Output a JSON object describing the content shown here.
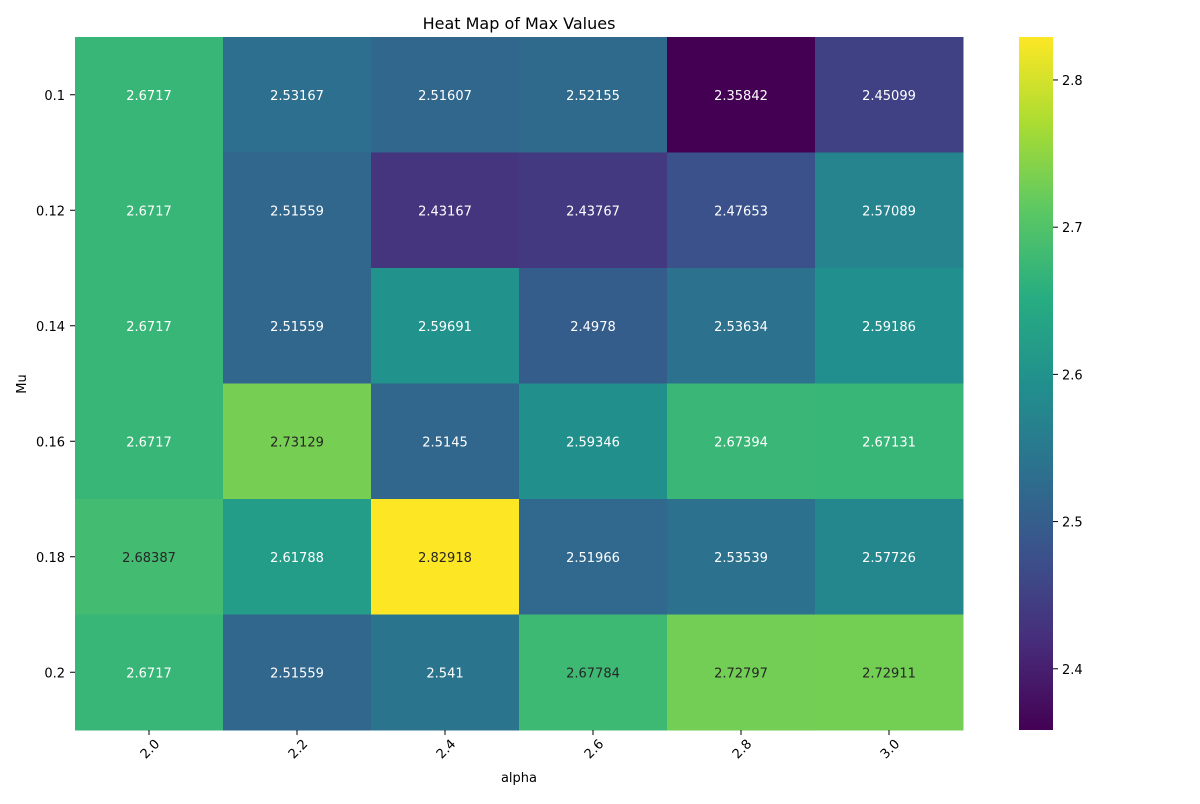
{
  "chart_data": {
    "type": "heatmap",
    "title": "Heat Map of Max Values",
    "xlabel": "alpha",
    "ylabel": "Mu",
    "x_categories": [
      "2.0",
      "2.2",
      "2.4",
      "2.6",
      "2.8",
      "3.0"
    ],
    "y_categories": [
      "0.1",
      "0.12",
      "0.14",
      "0.16",
      "0.18",
      "0.2"
    ],
    "values": [
      [
        2.6717,
        2.53167,
        2.51607,
        2.52155,
        2.35842,
        2.45099
      ],
      [
        2.6717,
        2.51559,
        2.43167,
        2.43767,
        2.47653,
        2.57089
      ],
      [
        2.6717,
        2.51559,
        2.59691,
        2.4978,
        2.53634,
        2.59186
      ],
      [
        2.6717,
        2.73129,
        2.5145,
        2.59346,
        2.67394,
        2.67131
      ],
      [
        2.68387,
        2.61788,
        2.82918,
        2.51966,
        2.53539,
        2.57726
      ],
      [
        2.6717,
        2.51559,
        2.541,
        2.67784,
        2.72797,
        2.72911
      ]
    ],
    "annotations": [
      [
        "2.6717",
        "2.53167",
        "2.51607",
        "2.52155",
        "2.35842",
        "2.45099"
      ],
      [
        "2.6717",
        "2.51559",
        "2.43167",
        "2.43767",
        "2.47653",
        "2.57089"
      ],
      [
        "2.6717",
        "2.51559",
        "2.59691",
        "2.4978",
        "2.53634",
        "2.59186"
      ],
      [
        "2.6717",
        "2.73129",
        "2.5145",
        "2.59346",
        "2.67394",
        "2.67131"
      ],
      [
        "2.68387",
        "2.61788",
        "2.82918",
        "2.51966",
        "2.53539",
        "2.57726"
      ],
      [
        "2.6717",
        "2.51559",
        "2.541",
        "2.67784",
        "2.72797",
        "2.72911"
      ]
    ],
    "colormap": "viridis",
    "vmin": 2.35842,
    "vmax": 2.82918,
    "colorbar_ticks": [
      "2.4",
      "2.5",
      "2.6",
      "2.7",
      "2.8"
    ],
    "x_tick_rotation": "45 degrees",
    "grid": false
  }
}
